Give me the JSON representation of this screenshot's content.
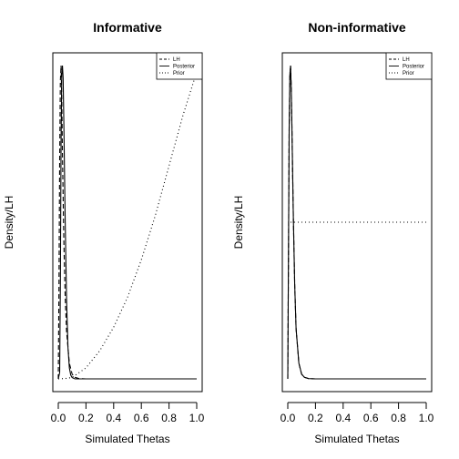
{
  "chart_data": [
    {
      "type": "line",
      "title": "Informative",
      "xlabel": "Simulated Thetas",
      "ylabel": "Density/LH",
      "xlim": [
        0,
        1
      ],
      "xticks": [
        "0.0",
        "0.2",
        "0.4",
        "0.6",
        "0.8",
        "1.0"
      ],
      "yticks_shown": false,
      "ylim": [
        0,
        1
      ],
      "legend": {
        "position": "top-right",
        "entries": [
          {
            "label": "LH",
            "style": "dashed"
          },
          {
            "label": "Posterior",
            "style": "solid"
          },
          {
            "label": "Prior",
            "style": "dotted"
          }
        ]
      },
      "series": [
        {
          "name": "LH",
          "style": "dashed",
          "x": [
            0,
            0.005,
            0.01,
            0.015,
            0.02,
            0.025,
            0.03,
            0.04,
            0.05,
            0.06,
            0.08,
            0.1,
            0.12,
            0.15,
            0.2,
            0.3,
            0.5,
            0.75,
            1.0
          ],
          "y": [
            0,
            0.3,
            0.7,
            0.95,
            1.0,
            0.9,
            0.72,
            0.44,
            0.26,
            0.15,
            0.05,
            0.015,
            0.005,
            0.001,
            0,
            0,
            0,
            0,
            0
          ]
        },
        {
          "name": "Posterior",
          "style": "solid",
          "x": [
            0,
            0.01,
            0.015,
            0.02,
            0.025,
            0.03,
            0.035,
            0.04,
            0.05,
            0.06,
            0.07,
            0.08,
            0.09,
            0.1,
            0.12,
            0.15,
            0.2,
            0.5,
            1.0
          ],
          "y": [
            0,
            0.02,
            0.3,
            0.75,
            0.97,
            1.0,
            0.96,
            0.82,
            0.5,
            0.25,
            0.1,
            0.035,
            0.012,
            0.004,
            0,
            0,
            0,
            0,
            0
          ]
        },
        {
          "name": "Prior",
          "style": "dotted",
          "x": [
            0,
            0.05,
            0.1,
            0.2,
            0.3,
            0.4,
            0.5,
            0.6,
            0.7,
            0.8,
            0.9,
            1.0
          ],
          "y": [
            0,
            0.0012,
            0.0045,
            0.035,
            0.09,
            0.165,
            0.26,
            0.38,
            0.52,
            0.68,
            0.84,
            0.98
          ]
        }
      ]
    },
    {
      "type": "line",
      "title": "Non-informative",
      "xlabel": "Simulated Thetas",
      "ylabel": "Density/LH",
      "xlim": [
        0,
        1
      ],
      "xticks": [
        "0.0",
        "0.2",
        "0.4",
        "0.6",
        "0.8",
        "1.0"
      ],
      "yticks_shown": false,
      "ylim": [
        0,
        1
      ],
      "legend": {
        "position": "top-right",
        "entries": [
          {
            "label": "LH",
            "style": "dashed"
          },
          {
            "label": "Posterior",
            "style": "solid"
          },
          {
            "label": "Prior",
            "style": "dotted"
          }
        ]
      },
      "series": [
        {
          "name": "LH",
          "style": "dashed",
          "x": [
            0,
            0.005,
            0.01,
            0.015,
            0.02,
            0.025,
            0.03,
            0.04,
            0.05,
            0.06,
            0.08,
            0.1,
            0.12,
            0.15,
            0.2,
            0.5,
            1.0
          ],
          "y": [
            0,
            0.4,
            0.8,
            0.97,
            1.0,
            0.93,
            0.8,
            0.52,
            0.3,
            0.16,
            0.05,
            0.015,
            0.005,
            0.001,
            0,
            0,
            0
          ]
        },
        {
          "name": "Posterior",
          "style": "solid",
          "x": [
            0,
            0.005,
            0.01,
            0.015,
            0.02,
            0.025,
            0.03,
            0.04,
            0.05,
            0.06,
            0.08,
            0.1,
            0.12,
            0.15,
            0.2,
            0.5,
            1.0
          ],
          "y": [
            0,
            0.4,
            0.8,
            0.97,
            1.0,
            0.93,
            0.8,
            0.52,
            0.3,
            0.16,
            0.05,
            0.015,
            0.005,
            0.001,
            0,
            0,
            0
          ]
        },
        {
          "name": "Prior",
          "style": "dotted",
          "x": [
            0.02,
            1.0
          ],
          "y": [
            0.5,
            0.5
          ]
        }
      ]
    }
  ]
}
